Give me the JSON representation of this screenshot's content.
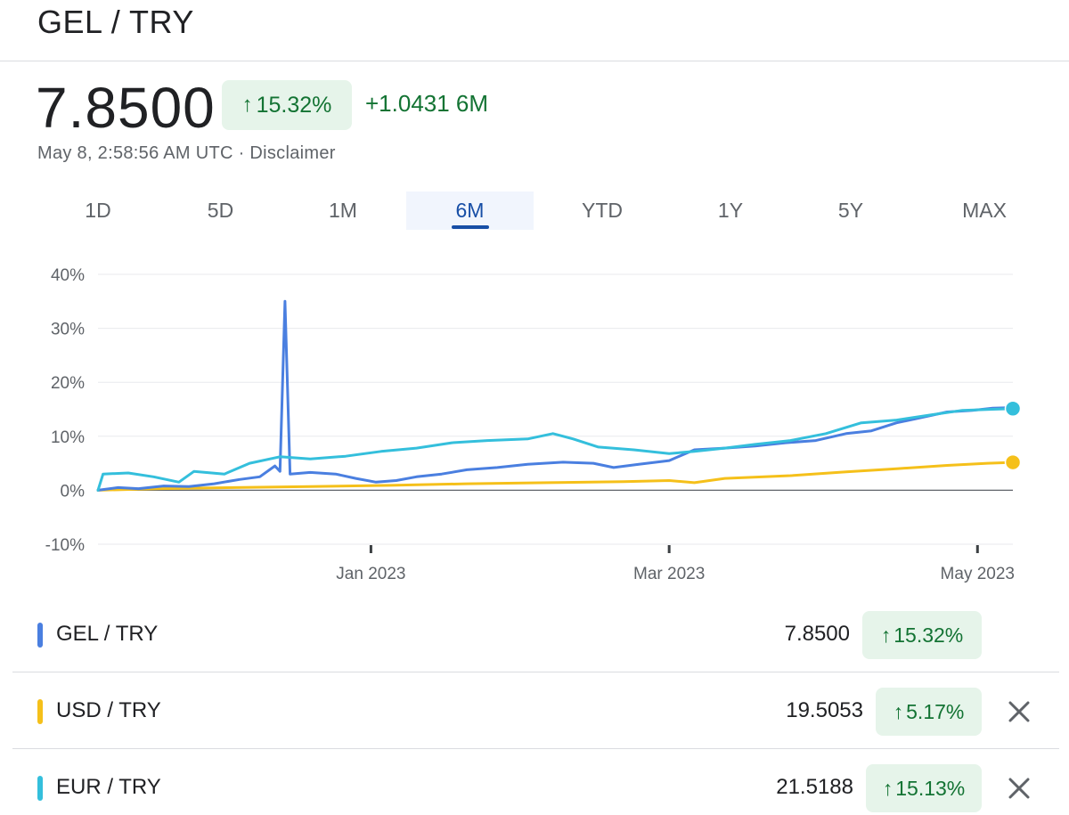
{
  "header": {
    "title": "GEL / TRY"
  },
  "quote": {
    "price": "7.8500",
    "change_pct": "15.32%",
    "change_abs": "+1.0431 6M",
    "timestamp": "May 8, 2:58:56 AM UTC · Disclaimer"
  },
  "tabs": [
    {
      "label": "1D",
      "active": false
    },
    {
      "label": "5D",
      "active": false
    },
    {
      "label": "1M",
      "active": false
    },
    {
      "label": "6M",
      "active": true
    },
    {
      "label": "YTD",
      "active": false
    },
    {
      "label": "1Y",
      "active": false
    },
    {
      "label": "5Y",
      "active": false
    },
    {
      "label": "MAX",
      "active": false
    }
  ],
  "comparisons": [
    {
      "name": "GEL / TRY",
      "value": "7.8500",
      "change": "15.32%",
      "color": "#4a7fe0",
      "removable": false
    },
    {
      "name": "USD / TRY",
      "value": "19.5053",
      "change": "5.17%",
      "color": "#f5c01a",
      "removable": true
    },
    {
      "name": "EUR / TRY",
      "value": "21.5188",
      "change": "15.13%",
      "color": "#34bfdc",
      "removable": true
    }
  ],
  "icons": {
    "up": "arrow-up-icon",
    "remove": "close-icon"
  },
  "chart_data": {
    "type": "line",
    "ylim": [
      -10,
      40
    ],
    "yticks": [
      "40%",
      "30%",
      "20%",
      "10%",
      "0%",
      "-10%"
    ],
    "ytick_values": [
      40,
      30,
      20,
      10,
      0,
      -10
    ],
    "xlim": [
      "2022-11-08",
      "2023-05-08"
    ],
    "xticks": [
      {
        "label": "Jan 2023",
        "date": "2023-01-01"
      },
      {
        "label": "Mar 2023",
        "date": "2023-03-01"
      },
      {
        "label": "May 2023",
        "date": "2023-05-01"
      }
    ],
    "series": [
      {
        "name": "GEL / TRY",
        "color": "#4a7fe0",
        "points": [
          [
            "2022-11-08",
            0
          ],
          [
            "2022-11-12",
            0.5
          ],
          [
            "2022-11-16",
            0.3
          ],
          [
            "2022-11-21",
            0.8
          ],
          [
            "2022-11-26",
            0.7
          ],
          [
            "2022-12-01",
            1.2
          ],
          [
            "2022-12-06",
            2.0
          ],
          [
            "2022-12-10",
            2.5
          ],
          [
            "2022-12-13",
            4.5
          ],
          [
            "2022-12-14",
            3.5
          ],
          [
            "2022-12-15",
            35.0
          ],
          [
            "2022-12-16",
            3.0
          ],
          [
            "2022-12-20",
            3.3
          ],
          [
            "2022-12-25",
            3.0
          ],
          [
            "2022-12-29",
            2.2
          ],
          [
            "2023-01-02",
            1.5
          ],
          [
            "2023-01-06",
            1.8
          ],
          [
            "2023-01-10",
            2.5
          ],
          [
            "2023-01-15",
            3.0
          ],
          [
            "2023-01-20",
            3.8
          ],
          [
            "2023-01-26",
            4.2
          ],
          [
            "2023-02-01",
            4.8
          ],
          [
            "2023-02-08",
            5.2
          ],
          [
            "2023-02-14",
            5.0
          ],
          [
            "2023-02-18",
            4.2
          ],
          [
            "2023-02-23",
            4.8
          ],
          [
            "2023-03-01",
            5.5
          ],
          [
            "2023-03-06",
            7.5
          ],
          [
            "2023-03-12",
            7.8
          ],
          [
            "2023-03-18",
            8.2
          ],
          [
            "2023-03-24",
            8.8
          ],
          [
            "2023-03-30",
            9.2
          ],
          [
            "2023-04-05",
            10.5
          ],
          [
            "2023-04-10",
            11.0
          ],
          [
            "2023-04-15",
            12.5
          ],
          [
            "2023-04-20",
            13.5
          ],
          [
            "2023-04-25",
            14.5
          ],
          [
            "2023-04-30",
            14.8
          ],
          [
            "2023-05-04",
            15.2
          ],
          [
            "2023-05-08",
            15.32
          ]
        ]
      },
      {
        "name": "USD / TRY",
        "color": "#f5c01a",
        "points": [
          [
            "2022-11-08",
            0
          ],
          [
            "2022-11-20",
            0.3
          ],
          [
            "2022-12-05",
            0.5
          ],
          [
            "2022-12-20",
            0.7
          ],
          [
            "2023-01-05",
            0.9
          ],
          [
            "2023-01-20",
            1.2
          ],
          [
            "2023-02-05",
            1.4
          ],
          [
            "2023-02-20",
            1.6
          ],
          [
            "2023-03-01",
            1.8
          ],
          [
            "2023-03-06",
            1.4
          ],
          [
            "2023-03-12",
            2.2
          ],
          [
            "2023-03-25",
            2.7
          ],
          [
            "2023-04-05",
            3.4
          ],
          [
            "2023-04-15",
            4.0
          ],
          [
            "2023-04-25",
            4.6
          ],
          [
            "2023-05-03",
            5.0
          ],
          [
            "2023-05-08",
            5.17
          ]
        ]
      },
      {
        "name": "EUR / TRY",
        "color": "#34bfdc",
        "points": [
          [
            "2022-11-08",
            0
          ],
          [
            "2022-11-09",
            3.0
          ],
          [
            "2022-11-14",
            3.2
          ],
          [
            "2022-11-19",
            2.5
          ],
          [
            "2022-11-24",
            1.5
          ],
          [
            "2022-11-27",
            3.5
          ],
          [
            "2022-12-03",
            3.0
          ],
          [
            "2022-12-08",
            5.0
          ],
          [
            "2022-12-14",
            6.2
          ],
          [
            "2022-12-20",
            5.8
          ],
          [
            "2022-12-27",
            6.3
          ],
          [
            "2023-01-03",
            7.2
          ],
          [
            "2023-01-10",
            7.8
          ],
          [
            "2023-01-17",
            8.8
          ],
          [
            "2023-01-24",
            9.2
          ],
          [
            "2023-02-01",
            9.5
          ],
          [
            "2023-02-06",
            10.5
          ],
          [
            "2023-02-10",
            9.5
          ],
          [
            "2023-02-15",
            8.0
          ],
          [
            "2023-02-22",
            7.5
          ],
          [
            "2023-03-01",
            6.8
          ],
          [
            "2023-03-06",
            7.2
          ],
          [
            "2023-03-12",
            7.8
          ],
          [
            "2023-03-18",
            8.5
          ],
          [
            "2023-03-25",
            9.2
          ],
          [
            "2023-04-01",
            10.5
          ],
          [
            "2023-04-08",
            12.5
          ],
          [
            "2023-04-15",
            13.0
          ],
          [
            "2023-04-22",
            14.0
          ],
          [
            "2023-04-28",
            14.8
          ],
          [
            "2023-05-04",
            15.0
          ],
          [
            "2023-05-08",
            15.13
          ]
        ]
      }
    ]
  }
}
